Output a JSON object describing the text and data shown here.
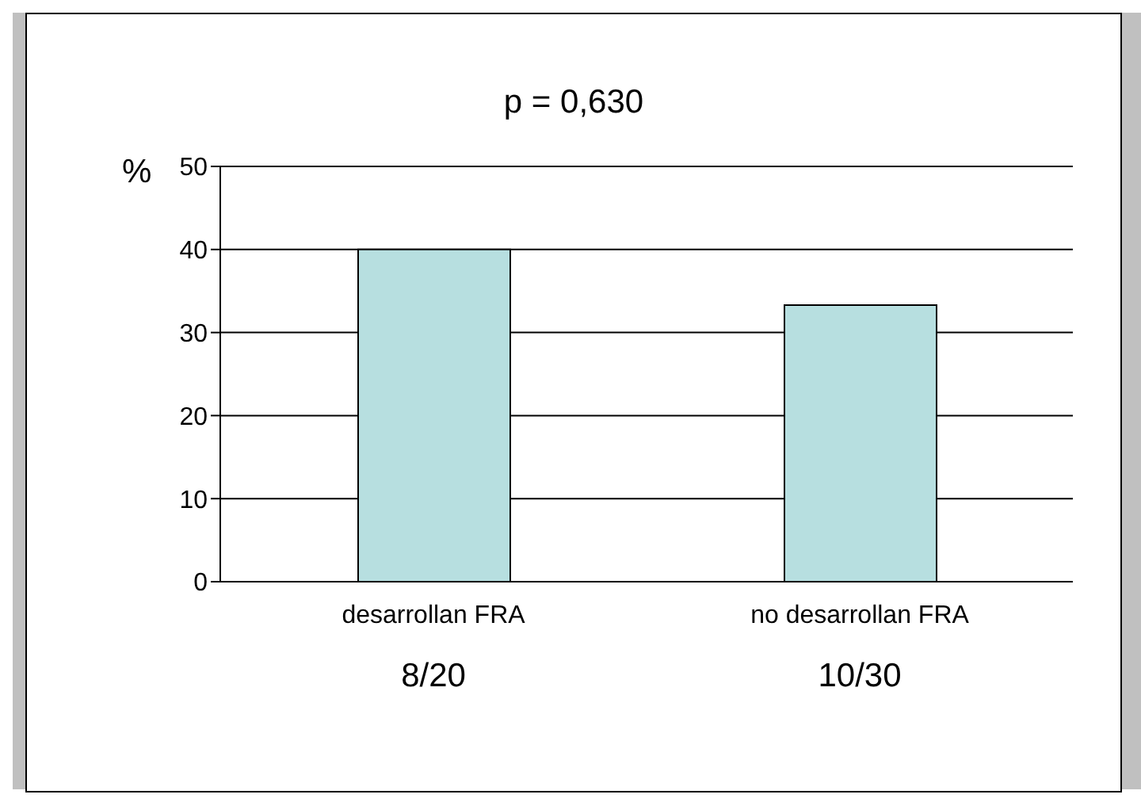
{
  "chart_data": {
    "type": "bar",
    "title": "p = 0,630",
    "ylabel": "%",
    "categories": [
      "desarrollan FRA",
      "no desarrollan FRA"
    ],
    "values": [
      40,
      33.3
    ],
    "color": "#b7dfe0",
    "ylim": [
      0,
      50
    ],
    "yticks": [
      0,
      10,
      20,
      30,
      40,
      50
    ],
    "grid": "y",
    "annotations": [
      "8/20",
      "10/30"
    ]
  }
}
